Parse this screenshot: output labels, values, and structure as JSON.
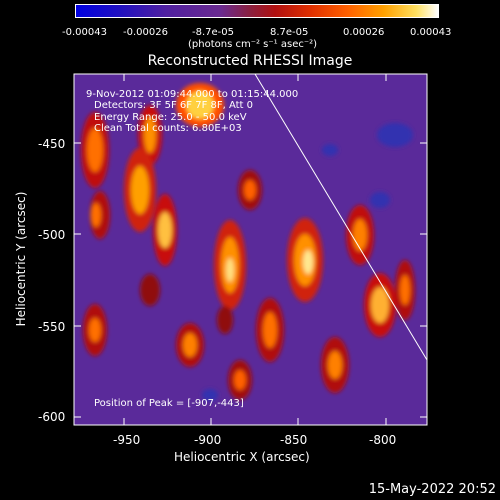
{
  "colorbar": {
    "ticks": [
      "-0.00043",
      "-0.00026",
      "-8.7e-05",
      "8.7e-05",
      "0.00026",
      "0.00043"
    ],
    "units": "(photons cm",
    "units_full": "(photons cm⁻² s⁻¹ asec⁻²)"
  },
  "title": "Reconstructed RHESSI Image",
  "overlay": {
    "time": "9-Nov-2012 01:09:44.000 to 01:15:44.000",
    "detectors": "Detectors: 3F 5F 6F 7F 8F, Att 0",
    "energy": "Energy Range: 25.0 - 50.0 keV",
    "clean": "Clean     Total counts: 6.80E+03",
    "peak": "Position of Peak = [-907,-443]"
  },
  "xaxis": {
    "label": "Heliocentric X (arcsec)",
    "ticks": [
      "-950",
      "-900",
      "-850",
      "-800"
    ]
  },
  "yaxis": {
    "label": "Heliocentric Y (arcsec)",
    "ticks": [
      "-450",
      "-500",
      "-550",
      "-600"
    ]
  },
  "timestamp": "15-May-2022 20:52",
  "colors": {
    "background": "#000000",
    "map_base": "#5a2a9a"
  }
}
